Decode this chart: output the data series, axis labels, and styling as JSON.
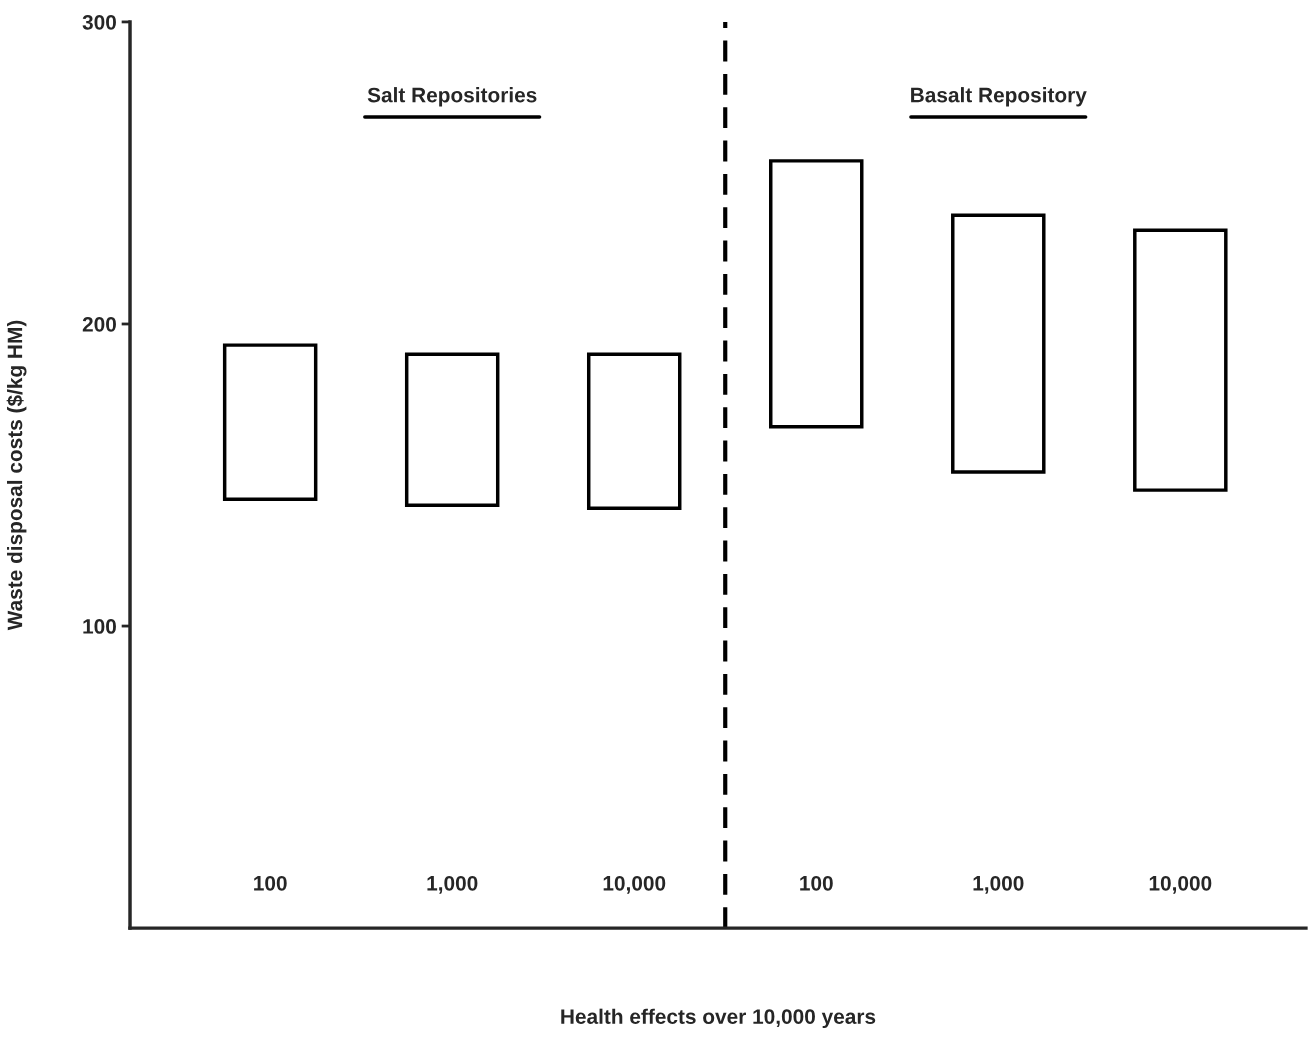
{
  "chart_data": {
    "type": "bar",
    "xlabel": "Health effects over 10,000 years",
    "ylabel": "Waste disposal costs ($/kg HM)",
    "categories": [
      "100",
      "1,000",
      "10,000",
      "100",
      "1,000",
      "10,000"
    ],
    "base": [
      142,
      140,
      139,
      166,
      151,
      145
    ],
    "values": [
      51,
      50,
      51,
      88,
      85,
      86
    ],
    "color": "#000000",
    "ylim": [
      0,
      300
    ],
    "yticks": [
      100,
      200,
      300
    ],
    "annotations": [
      "Salt Repositories",
      "Basalt Repository"
    ],
    "grid": false,
    "legend": false
  }
}
